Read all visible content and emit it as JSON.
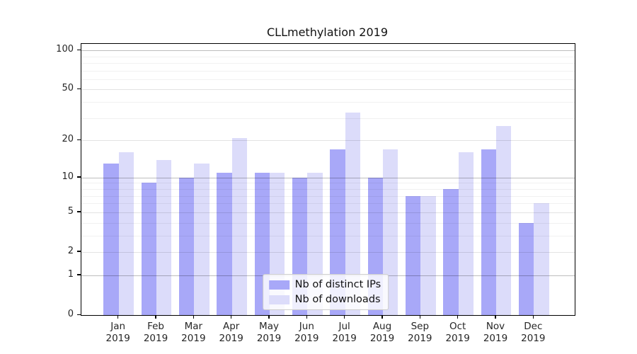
{
  "title": "CLLmethylation 2019",
  "chart_data": {
    "type": "bar",
    "title": "CLLmethylation 2019",
    "categories": [
      "Jan",
      "Feb",
      "Mar",
      "Apr",
      "May",
      "Jun",
      "Jul",
      "Aug",
      "Sep",
      "Oct",
      "Nov",
      "Dec"
    ],
    "category_year": "2019",
    "series": [
      {
        "name": "Nb of distinct IPs",
        "color": "#a8a8f8",
        "values": [
          13,
          9,
          10,
          11,
          11,
          10,
          17,
          10,
          7,
          8,
          17,
          4
        ]
      },
      {
        "name": "Nb of downloads",
        "color": "#dcdcfa",
        "values": [
          16,
          14,
          13,
          21,
          11,
          11,
          33,
          17,
          7,
          16,
          26,
          6
        ]
      }
    ],
    "xlabel": "",
    "ylabel": "",
    "y_axis_scale": "log1p",
    "y_ticks": [
      0,
      1,
      2,
      5,
      10,
      20,
      50,
      100
    ],
    "y_minor_gridlines": [
      3,
      4,
      6,
      7,
      8,
      9,
      30,
      40,
      60,
      70,
      80,
      90
    ],
    "y_power_gridlines": [
      1,
      10,
      100
    ],
    "ylim": [
      0,
      112
    ],
    "grid": true,
    "legend_position": "lower center",
    "legend_items": [
      "Nb of distinct IPs",
      "Nb of downloads"
    ],
    "axis_color": "#000000",
    "background_color": "#ffffff"
  }
}
